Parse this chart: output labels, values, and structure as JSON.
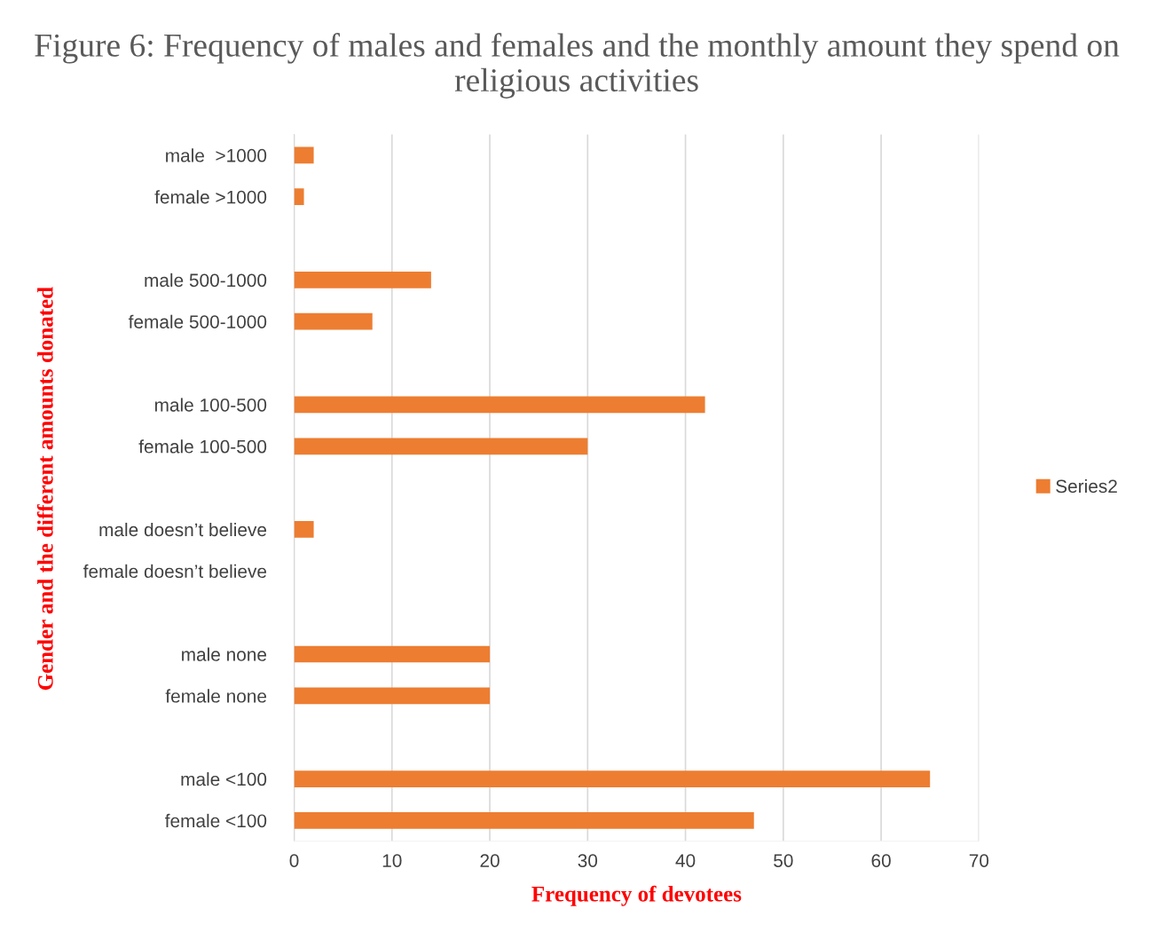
{
  "chart_data": {
    "type": "bar",
    "orientation": "horizontal",
    "title": "Figure 6: Frequency of males and females and the monthly amount they spend on religious activities",
    "xlabel": "Frequency of devotees",
    "ylabel": "Gender and the different amounts donated",
    "categories": [
      "male  >1000",
      "female >1000",
      null,
      "male 500-1000",
      "female 500-1000",
      null,
      "male 100-500",
      "female 100-500",
      null,
      "male doesn’t believe",
      "female doesn’t believe",
      null,
      "male none",
      "female none",
      null,
      "male <100",
      "female <100"
    ],
    "series": [
      {
        "name": "Series2",
        "color": "#ed7d31",
        "values": [
          2,
          1,
          null,
          14,
          8,
          null,
          42,
          30,
          null,
          2,
          null,
          null,
          20,
          20,
          null,
          65,
          47
        ]
      }
    ],
    "xlim": [
      0,
      70
    ],
    "xticks": [
      0,
      10,
      20,
      30,
      40,
      50,
      60,
      70
    ],
    "grid": "x",
    "legend": "right"
  }
}
